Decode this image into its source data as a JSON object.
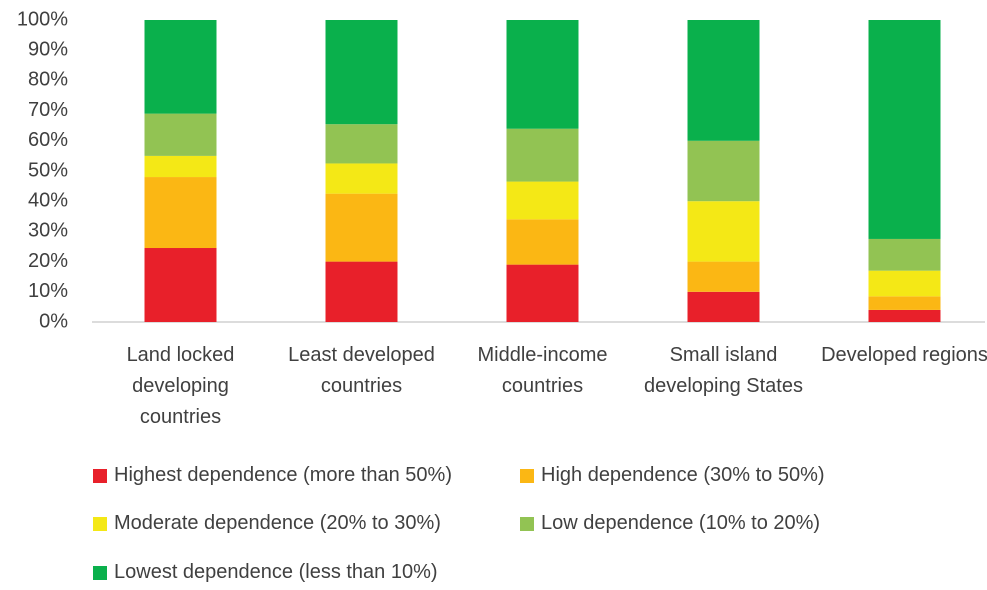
{
  "chart_data": {
    "type": "stacked_bar",
    "categories": [
      "Land locked developing countries",
      "Least developed countries",
      "Middle-income countries",
      "Small island developing States",
      "Developed regions"
    ],
    "series": [
      {
        "name": "Highest dependence (more than 50%)",
        "color": "#e8202a",
        "values": [
          24.5,
          20,
          19,
          10,
          4
        ]
      },
      {
        "name": "High dependence (30% to 50%)",
        "color": "#fbb714",
        "values": [
          23.5,
          22.5,
          15,
          10,
          4.5
        ]
      },
      {
        "name": "Moderate dependence (20% to 30%)",
        "color": "#f4e816",
        "values": [
          7,
          10,
          12.5,
          20,
          8.5
        ]
      },
      {
        "name": "Low dependence (10% to 20%)",
        "color": "#92c353",
        "values": [
          14,
          13,
          17.5,
          20,
          10.5
        ]
      },
      {
        "name": "Lowest dependence (less than 10%)",
        "color": "#0ab04c",
        "values": [
          31,
          34.5,
          36,
          40,
          72.5
        ]
      }
    ],
    "ylim": [
      0,
      100
    ],
    "yticks": [
      {
        "value": 0,
        "label": "0%"
      },
      {
        "value": 10,
        "label": "10%"
      },
      {
        "value": 20,
        "label": "20%"
      },
      {
        "value": 30,
        "label": "30%"
      },
      {
        "value": 40,
        "label": "40%"
      },
      {
        "value": 50,
        "label": "50%"
      },
      {
        "value": 60,
        "label": "60%"
      },
      {
        "value": 70,
        "label": "70%"
      },
      {
        "value": 80,
        "label": "80%"
      },
      {
        "value": 90,
        "label": "90%"
      },
      {
        "value": 100,
        "label": "100%"
      }
    ],
    "grid": false
  }
}
